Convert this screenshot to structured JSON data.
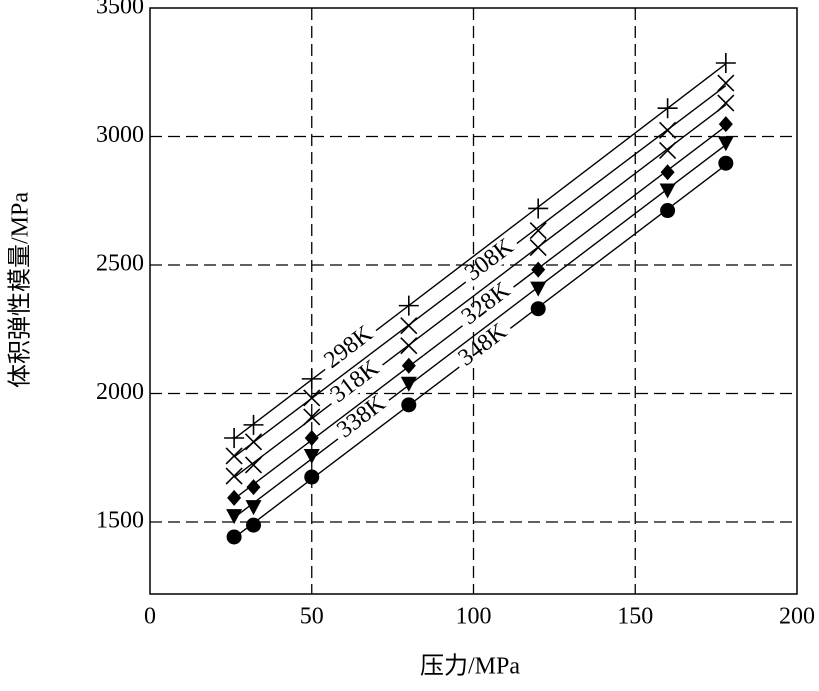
{
  "chart_data": {
    "type": "scatter",
    "xlabel": "压力/MPa",
    "ylabel": "体积弹性模量/MPa",
    "x": [
      26,
      32,
      50,
      80,
      120,
      160,
      178
    ],
    "xlim": [
      0,
      200
    ],
    "xticks": [
      0,
      50,
      100,
      150,
      200
    ],
    "ylim": [
      1220,
      3500
    ],
    "yticks": [
      1500,
      2000,
      2500,
      3000,
      3500
    ],
    "grid": true,
    "fit_lines": true,
    "series": [
      {
        "name": "298K",
        "color": "#000000",
        "marker": "plus",
        "values": [
          1827,
          1878,
          2057,
          2342,
          2720,
          3110,
          3286
        ]
      },
      {
        "name": "308K",
        "color": "#000000",
        "marker": "x",
        "values": [
          1757,
          1812,
          1983,
          2264,
          2634,
          3024,
          3208
        ]
      },
      {
        "name": "318K",
        "color": "#000000",
        "marker": "x",
        "values": [
          1679,
          1722,
          1909,
          2186,
          2568,
          2946,
          3130
        ]
      },
      {
        "name": "328K",
        "color": "#000000",
        "marker": "diamond",
        "values": [
          1594,
          1636,
          1827,
          2108,
          2482,
          2861,
          3048
        ]
      },
      {
        "name": "338K",
        "color": "#000000",
        "marker": "triangle-down",
        "values": [
          1523,
          1558,
          1757,
          2038,
          2408,
          2790,
          2974
        ]
      },
      {
        "name": "348K",
        "color": "#000000",
        "marker": "circle",
        "values": [
          1442,
          1488,
          1675,
          1956,
          2330,
          2712,
          2896
        ]
      }
    ]
  }
}
